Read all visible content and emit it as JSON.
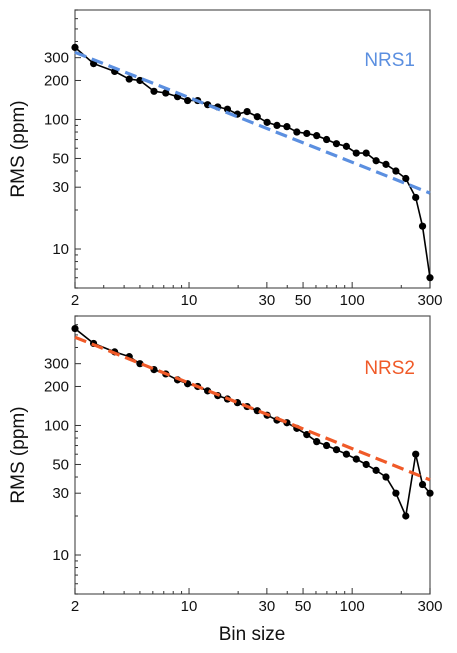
{
  "chart_data": [
    {
      "type": "line",
      "label": "NRS1",
      "label_color": "#5b8fe0",
      "fit_color": "#5b8fe0",
      "xscale": "log",
      "yscale": "log",
      "xlim": [
        2,
        300
      ],
      "ylim": [
        5,
        700
      ],
      "xticks": [
        2,
        10,
        30,
        50,
        100,
        300
      ],
      "yticks": [
        10,
        30,
        50,
        100,
        200,
        300
      ],
      "xlabel": "",
      "ylabel": "RMS (ppm)",
      "fit_line": {
        "x": [
          2,
          300
        ],
        "y": [
          330,
          27
        ]
      },
      "series": [
        {
          "color": "#000000",
          "x": [
            2,
            2.6,
            3.5,
            4.3,
            5.0,
            6.1,
            7.2,
            8.5,
            9.8,
            11.3,
            13.0,
            15.0,
            17.2,
            19.8,
            22.7,
            26.2,
            30.1,
            34.6,
            39.8,
            45.8,
            52.7,
            60.6,
            69.7,
            80.1,
            92.2,
            106.0,
            121.9,
            140.2,
            161.2,
            185.4,
            213.2,
            245.2,
            270.0,
            300.0
          ],
          "y": [
            360,
            270,
            235,
            205,
            200,
            165,
            160,
            150,
            140,
            140,
            130,
            125,
            120,
            110,
            115,
            105,
            95,
            90,
            88,
            80,
            78,
            75,
            70,
            65,
            62,
            55,
            55,
            48,
            45,
            40,
            35,
            25,
            15,
            6
          ]
        }
      ]
    },
    {
      "type": "line",
      "label": "NRS2",
      "label_color": "#f05a28",
      "fit_color": "#f05a28",
      "xscale": "log",
      "yscale": "log",
      "xlim": [
        2,
        300
      ],
      "ylim": [
        5,
        700
      ],
      "xticks": [
        2,
        10,
        30,
        50,
        100,
        300
      ],
      "yticks": [
        10,
        30,
        50,
        100,
        200,
        300
      ],
      "xlabel": "Bin size",
      "ylabel": "RMS (ppm)",
      "fit_line": {
        "x": [
          2,
          300
        ],
        "y": [
          480,
          38
        ]
      },
      "series": [
        {
          "color": "#000000",
          "x": [
            2,
            2.6,
            3.5,
            4.3,
            5.0,
            6.1,
            7.2,
            8.5,
            9.8,
            11.3,
            13.0,
            15.0,
            17.2,
            19.8,
            22.7,
            26.2,
            30.1,
            34.6,
            39.8,
            45.8,
            52.7,
            60.6,
            69.7,
            80.1,
            92.2,
            106.0,
            121.9,
            140.2,
            161.2,
            185.4,
            213.2,
            245.2,
            270.0,
            300.0
          ],
          "y": [
            560,
            430,
            370,
            340,
            300,
            270,
            250,
            225,
            210,
            200,
            185,
            170,
            160,
            150,
            140,
            130,
            120,
            110,
            105,
            95,
            85,
            75,
            70,
            65,
            60,
            55,
            50,
            45,
            40,
            30,
            20,
            60,
            35,
            30
          ]
        }
      ]
    }
  ]
}
